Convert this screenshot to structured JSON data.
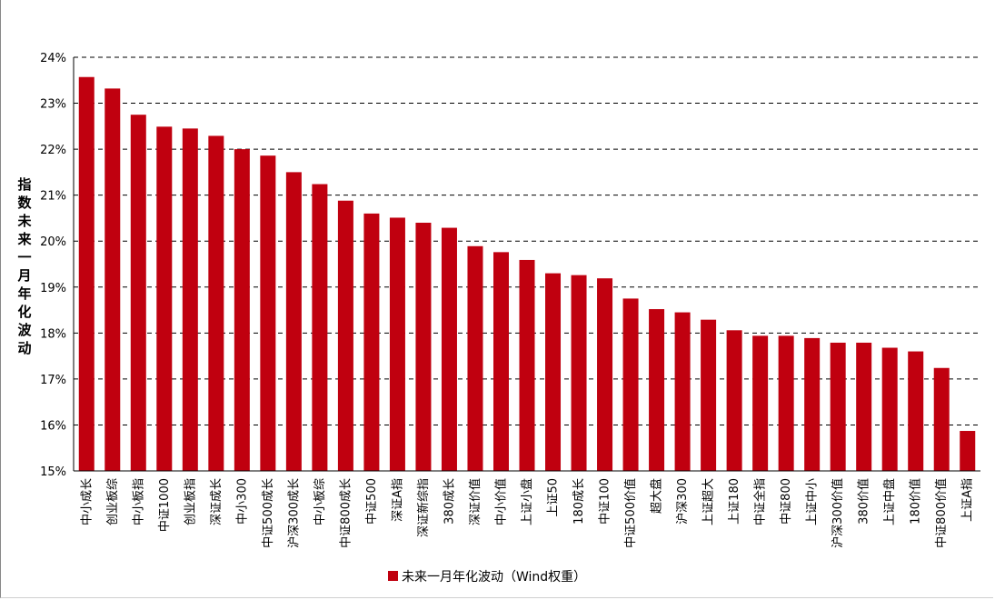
{
  "chart_data": {
    "type": "bar",
    "title": "",
    "ylabel": "指数未来一月年化波动",
    "xlabel": "",
    "ylim": [
      15,
      24
    ],
    "yticks": [
      "15%",
      "16%",
      "17%",
      "18%",
      "19%",
      "20%",
      "21%",
      "22%",
      "23%",
      "24%"
    ],
    "grid": true,
    "legend_position": "bottom",
    "color": "#c0000f",
    "categories": [
      "中小成长",
      "创业板综",
      "中小板指",
      "中证1000",
      "创业板指",
      "深证成长",
      "中小300",
      "中证500成长",
      "沪深300成长",
      "中小板综",
      "中证800成长",
      "中证500",
      "深证A指",
      "深证新综指",
      "380成长",
      "深证价值",
      "中小价值",
      "上证小盘",
      "上证50",
      "180成长",
      "中证100",
      "中证500价值",
      "超大盘",
      "沪深300",
      "上证超大",
      "上证180",
      "中证全指",
      "中证800",
      "上证中小",
      "沪深300价值",
      "380价值",
      "上证中盘",
      "180价值",
      "中证800价值",
      "上证A指"
    ],
    "series": [
      {
        "name": "未来一月年化波动（Wind权重）",
        "values": [
          23.57,
          23.32,
          22.75,
          22.49,
          22.45,
          22.29,
          22.0,
          21.86,
          21.5,
          21.24,
          20.88,
          20.6,
          20.51,
          20.4,
          20.29,
          19.89,
          19.76,
          19.59,
          19.3,
          19.26,
          19.19,
          18.75,
          18.52,
          18.45,
          18.29,
          18.06,
          17.94,
          17.94,
          17.89,
          17.79,
          17.79,
          17.68,
          17.6,
          17.24,
          15.87
        ]
      }
    ]
  }
}
